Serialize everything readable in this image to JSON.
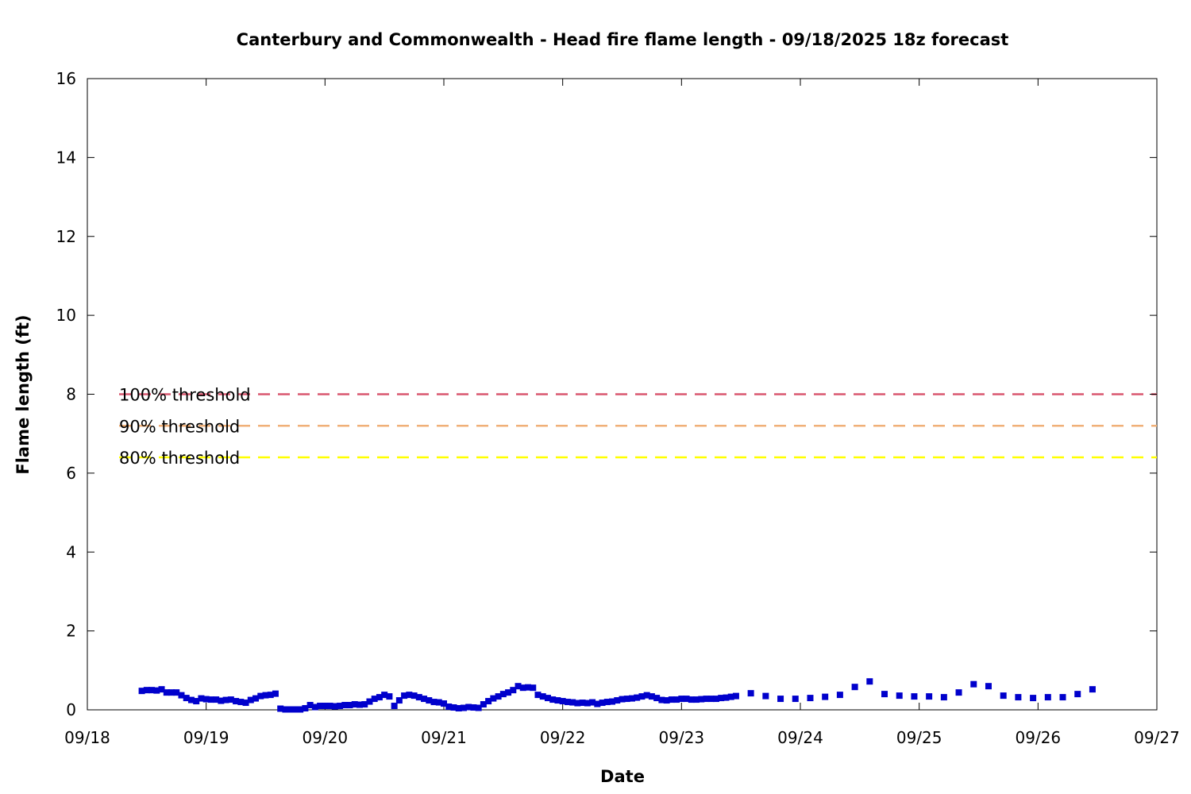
{
  "chart_data": {
    "type": "scatter",
    "title": "Canterbury and Commonwealth - Head fire flame length - 09/18/2025 18z forecast",
    "xlabel": "Date",
    "ylabel": "Flame length (ft)",
    "xlim": [
      "09/18 00:00",
      "09/27 00:00"
    ],
    "ylim": [
      0,
      16
    ],
    "x_ticks": [
      "09/18",
      "09/19",
      "09/20",
      "09/21",
      "09/22",
      "09/23",
      "09/24",
      "09/25",
      "09/26",
      "09/27"
    ],
    "y_ticks": [
      0,
      2,
      4,
      6,
      8,
      10,
      12,
      14,
      16
    ],
    "grid": false,
    "thresholds": [
      {
        "label": "100% threshold",
        "value": 8.0,
        "color": "#d9576f"
      },
      {
        "label": "90% threshold",
        "value": 7.2,
        "color": "#f0b078"
      },
      {
        "label": "80% threshold",
        "value": 6.4,
        "color": "#ffff00"
      }
    ],
    "series": [
      {
        "color": "#0000cc",
        "marker": "square",
        "points": [
          [
            "09/18 11:00",
            0.48
          ],
          [
            "09/18 12:00",
            0.5
          ],
          [
            "09/18 13:00",
            0.5
          ],
          [
            "09/18 14:00",
            0.49
          ],
          [
            "09/18 15:00",
            0.52
          ],
          [
            "09/18 16:00",
            0.44
          ],
          [
            "09/18 17:00",
            0.44
          ],
          [
            "09/18 18:00",
            0.44
          ],
          [
            "09/18 19:00",
            0.37
          ],
          [
            "09/18 20:00",
            0.3
          ],
          [
            "09/18 21:00",
            0.25
          ],
          [
            "09/18 22:00",
            0.22
          ],
          [
            "09/18 23:00",
            0.29
          ],
          [
            "09/19 00:00",
            0.27
          ],
          [
            "09/19 01:00",
            0.26
          ],
          [
            "09/19 02:00",
            0.26
          ],
          [
            "09/19 03:00",
            0.23
          ],
          [
            "09/19 04:00",
            0.25
          ],
          [
            "09/19 05:00",
            0.26
          ],
          [
            "09/19 06:00",
            0.22
          ],
          [
            "09/19 07:00",
            0.2
          ],
          [
            "09/19 08:00",
            0.18
          ],
          [
            "09/19 09:00",
            0.25
          ],
          [
            "09/19 10:00",
            0.29
          ],
          [
            "09/19 11:00",
            0.35
          ],
          [
            "09/19 12:00",
            0.37
          ],
          [
            "09/19 13:00",
            0.38
          ],
          [
            "09/19 14:00",
            0.41
          ],
          [
            "09/19 15:00",
            0.03
          ],
          [
            "09/19 16:00",
            0.01
          ],
          [
            "09/19 17:00",
            0.01
          ],
          [
            "09/19 18:00",
            0.01
          ],
          [
            "09/19 19:00",
            0.01
          ],
          [
            "09/19 20:00",
            0.04
          ],
          [
            "09/19 21:00",
            0.12
          ],
          [
            "09/19 22:00",
            0.07
          ],
          [
            "09/19 23:00",
            0.1
          ],
          [
            "09/20 00:00",
            0.1
          ],
          [
            "09/20 01:00",
            0.1
          ],
          [
            "09/20 02:00",
            0.09
          ],
          [
            "09/20 03:00",
            0.1
          ],
          [
            "09/20 04:00",
            0.12
          ],
          [
            "09/20 05:00",
            0.12
          ],
          [
            "09/20 06:00",
            0.14
          ],
          [
            "09/20 07:00",
            0.13
          ],
          [
            "09/20 08:00",
            0.14
          ],
          [
            "09/20 09:00",
            0.21
          ],
          [
            "09/20 10:00",
            0.28
          ],
          [
            "09/20 11:00",
            0.32
          ],
          [
            "09/20 12:00",
            0.38
          ],
          [
            "09/20 13:00",
            0.34
          ],
          [
            "09/20 14:00",
            0.1
          ],
          [
            "09/20 15:00",
            0.24
          ],
          [
            "09/20 16:00",
            0.36
          ],
          [
            "09/20 17:00",
            0.38
          ],
          [
            "09/20 18:00",
            0.36
          ],
          [
            "09/20 19:00",
            0.32
          ],
          [
            "09/20 20:00",
            0.28
          ],
          [
            "09/20 21:00",
            0.24
          ],
          [
            "09/20 22:00",
            0.2
          ],
          [
            "09/20 23:00",
            0.19
          ],
          [
            "09/21 00:00",
            0.16
          ],
          [
            "09/21 01:00",
            0.08
          ],
          [
            "09/21 02:00",
            0.06
          ],
          [
            "09/21 03:00",
            0.04
          ],
          [
            "09/21 04:00",
            0.05
          ],
          [
            "09/21 05:00",
            0.07
          ],
          [
            "09/21 06:00",
            0.06
          ],
          [
            "09/21 07:00",
            0.05
          ],
          [
            "09/21 08:00",
            0.14
          ],
          [
            "09/21 09:00",
            0.22
          ],
          [
            "09/21 10:00",
            0.29
          ],
          [
            "09/21 11:00",
            0.34
          ],
          [
            "09/21 12:00",
            0.4
          ],
          [
            "09/21 13:00",
            0.44
          ],
          [
            "09/21 14:00",
            0.5
          ],
          [
            "09/21 15:00",
            0.6
          ],
          [
            "09/21 16:00",
            0.56
          ],
          [
            "09/21 17:00",
            0.57
          ],
          [
            "09/21 18:00",
            0.56
          ],
          [
            "09/21 19:00",
            0.38
          ],
          [
            "09/21 20:00",
            0.34
          ],
          [
            "09/21 21:00",
            0.3
          ],
          [
            "09/21 22:00",
            0.26
          ],
          [
            "09/21 23:00",
            0.24
          ],
          [
            "09/22 00:00",
            0.22
          ],
          [
            "09/22 01:00",
            0.2
          ],
          [
            "09/22 02:00",
            0.19
          ],
          [
            "09/22 03:00",
            0.17
          ],
          [
            "09/22 04:00",
            0.18
          ],
          [
            "09/22 05:00",
            0.17
          ],
          [
            "09/22 06:00",
            0.19
          ],
          [
            "09/22 07:00",
            0.15
          ],
          [
            "09/22 08:00",
            0.18
          ],
          [
            "09/22 09:00",
            0.2
          ],
          [
            "09/22 10:00",
            0.21
          ],
          [
            "09/22 11:00",
            0.24
          ],
          [
            "09/22 12:00",
            0.27
          ],
          [
            "09/22 13:00",
            0.28
          ],
          [
            "09/22 14:00",
            0.29
          ],
          [
            "09/22 15:00",
            0.31
          ],
          [
            "09/22 16:00",
            0.34
          ],
          [
            "09/22 17:00",
            0.37
          ],
          [
            "09/22 18:00",
            0.34
          ],
          [
            "09/22 19:00",
            0.3
          ],
          [
            "09/22 20:00",
            0.25
          ],
          [
            "09/22 21:00",
            0.24
          ],
          [
            "09/22 22:00",
            0.26
          ],
          [
            "09/22 23:00",
            0.26
          ],
          [
            "09/23 00:00",
            0.28
          ],
          [
            "09/23 01:00",
            0.28
          ],
          [
            "09/23 02:00",
            0.26
          ],
          [
            "09/23 03:00",
            0.26
          ],
          [
            "09/23 04:00",
            0.27
          ],
          [
            "09/23 05:00",
            0.28
          ],
          [
            "09/23 06:00",
            0.28
          ],
          [
            "09/23 07:00",
            0.28
          ],
          [
            "09/23 08:00",
            0.3
          ],
          [
            "09/23 09:00",
            0.31
          ],
          [
            "09/23 10:00",
            0.33
          ],
          [
            "09/23 11:00",
            0.35
          ],
          [
            "09/23 14:00",
            0.42
          ],
          [
            "09/23 17:00",
            0.35
          ],
          [
            "09/23 20:00",
            0.28
          ],
          [
            "09/23 23:00",
            0.28
          ],
          [
            "09/24 02:00",
            0.3
          ],
          [
            "09/24 05:00",
            0.33
          ],
          [
            "09/24 08:00",
            0.38
          ],
          [
            "09/24 11:00",
            0.58
          ],
          [
            "09/24 14:00",
            0.72
          ],
          [
            "09/24 17:00",
            0.4
          ],
          [
            "09/24 20:00",
            0.36
          ],
          [
            "09/24 23:00",
            0.34
          ],
          [
            "09/25 02:00",
            0.34
          ],
          [
            "09/25 05:00",
            0.32
          ],
          [
            "09/25 08:00",
            0.44
          ],
          [
            "09/25 11:00",
            0.65
          ],
          [
            "09/25 14:00",
            0.6
          ],
          [
            "09/25 17:00",
            0.36
          ],
          [
            "09/25 20:00",
            0.32
          ],
          [
            "09/25 23:00",
            0.3
          ],
          [
            "09/26 02:00",
            0.32
          ],
          [
            "09/26 05:00",
            0.32
          ],
          [
            "09/26 08:00",
            0.4
          ],
          [
            "09/26 11:00",
            0.52
          ]
        ]
      }
    ]
  }
}
